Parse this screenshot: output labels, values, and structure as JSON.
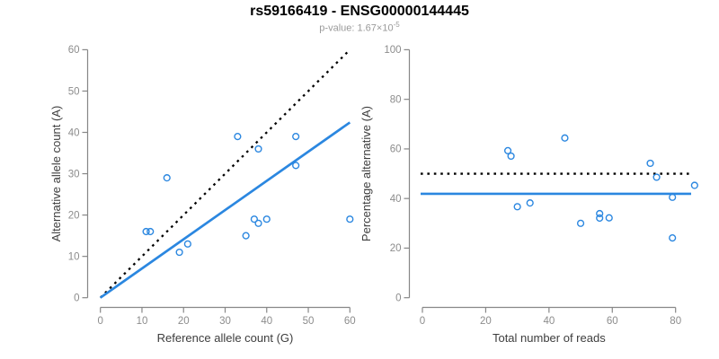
{
  "header": {
    "title": "rs59166419 - ENSG00000144445",
    "subtitle_prefix": "p-value: 1.67×10",
    "subtitle_exponent": "-5"
  },
  "colors": {
    "accent_blue": "#2B87E0",
    "dotted_black": "#000000",
    "axis_gray": "#878787",
    "tick_label_gray": "#8C8C8C",
    "axis_label_dark": "#3D3D3D"
  },
  "chart_data": [
    {
      "type": "scatter",
      "title": "",
      "xlabel": "Reference allele count (G)",
      "ylabel": "Alternative allele count (A)",
      "xlim": [
        0,
        60
      ],
      "ylim": [
        0,
        60
      ],
      "xticks": [
        0,
        10,
        20,
        30,
        40,
        50,
        60
      ],
      "yticks": [
        0,
        10,
        20,
        30,
        40,
        50,
        60
      ],
      "grid": false,
      "legend": null,
      "points": [
        [
          11,
          16
        ],
        [
          12,
          16
        ],
        [
          16,
          29
        ],
        [
          19,
          11
        ],
        [
          21,
          13
        ],
        [
          33,
          39
        ],
        [
          35,
          15
        ],
        [
          37,
          19
        ],
        [
          38,
          18
        ],
        [
          38,
          36
        ],
        [
          40,
          19
        ],
        [
          47,
          39
        ],
        [
          47,
          32
        ],
        [
          60,
          19
        ]
      ],
      "lines": [
        {
          "name": "identity-line",
          "style": "dotted",
          "color": "#000000",
          "from": [
            0,
            0
          ],
          "to": [
            60,
            60
          ]
        },
        {
          "name": "regression-line",
          "style": "solid",
          "color": "#2B87E0",
          "from": [
            0,
            0
          ],
          "to": [
            60,
            42.4
          ]
        }
      ]
    },
    {
      "type": "scatter",
      "title": "",
      "xlabel": "Total number of reads",
      "ylabel": "Percentage alternative (A)",
      "xlim": [
        0,
        85
      ],
      "ylim": [
        0,
        100
      ],
      "xticks": [
        0,
        20,
        40,
        60,
        80
      ],
      "yticks": [
        0,
        20,
        40,
        60,
        80,
        100
      ],
      "grid": false,
      "legend": null,
      "points": [
        [
          27,
          59.3
        ],
        [
          28,
          57.1
        ],
        [
          45,
          64.4
        ],
        [
          30,
          36.7
        ],
        [
          34,
          38.2
        ],
        [
          72,
          54.2
        ],
        [
          50,
          30.0
        ],
        [
          56,
          33.9
        ],
        [
          56,
          32.1
        ],
        [
          74,
          48.6
        ],
        [
          59,
          32.2
        ],
        [
          86,
          45.3
        ],
        [
          79,
          40.5
        ],
        [
          79,
          24.1
        ]
      ],
      "lines": [
        {
          "name": "fifty-percent-line",
          "style": "dotted",
          "color": "#000000",
          "y": 50
        },
        {
          "name": "mean-percentage-line",
          "style": "solid",
          "color": "#2B87E0",
          "y": 41.9
        }
      ]
    }
  ]
}
